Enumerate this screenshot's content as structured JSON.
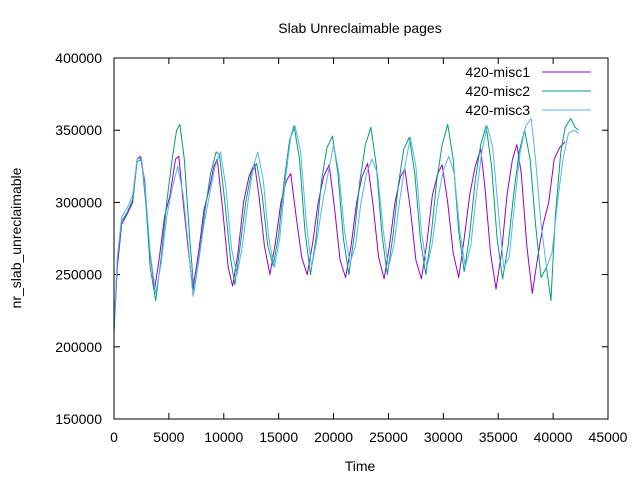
{
  "chart_data": {
    "type": "line",
    "title": "Slab Unreclaimable pages",
    "xlabel": "Time",
    "ylabel": "nr_slab_unreclaimable",
    "xlim": [
      0,
      45000
    ],
    "ylim": [
      150000,
      400000
    ],
    "xticks": [
      0,
      5000,
      10000,
      15000,
      20000,
      25000,
      30000,
      35000,
      40000,
      45000
    ],
    "yticks": [
      150000,
      200000,
      250000,
      300000,
      350000,
      400000
    ],
    "xtick_labels": [
      "0",
      "5000",
      "10000",
      "15000",
      "20000",
      "25000",
      "30000",
      "35000",
      "40000",
      "45000"
    ],
    "ytick_labels": [
      "150000",
      "200000",
      "250000",
      "300000",
      "350000",
      "400000"
    ],
    "legend_position": "top-right",
    "grid": false,
    "series": [
      {
        "name": "420-misc1",
        "color": "#9400d3",
        "points": [
          [
            0,
            210000
          ],
          [
            300,
            255000
          ],
          [
            700,
            285000
          ],
          [
            1200,
            292000
          ],
          [
            1700,
            300000
          ],
          [
            2100,
            330000
          ],
          [
            2400,
            332000
          ],
          [
            2800,
            315000
          ],
          [
            3200,
            270000
          ],
          [
            3700,
            240000
          ],
          [
            4100,
            260000
          ],
          [
            4600,
            290000
          ],
          [
            5100,
            305000
          ],
          [
            5600,
            330000
          ],
          [
            5900,
            332000
          ],
          [
            6300,
            300000
          ],
          [
            6800,
            265000
          ],
          [
            7200,
            240000
          ],
          [
            7700,
            265000
          ],
          [
            8200,
            295000
          ],
          [
            8700,
            310000
          ],
          [
            9100,
            325000
          ],
          [
            9400,
            330000
          ],
          [
            9900,
            295000
          ],
          [
            10400,
            255000
          ],
          [
            10800,
            242000
          ],
          [
            11300,
            265000
          ],
          [
            11800,
            300000
          ],
          [
            12300,
            318000
          ],
          [
            12800,
            327000
          ],
          [
            13200,
            305000
          ],
          [
            13700,
            270000
          ],
          [
            14200,
            250000
          ],
          [
            14700,
            272000
          ],
          [
            15200,
            300000
          ],
          [
            15700,
            315000
          ],
          [
            16100,
            320000
          ],
          [
            16600,
            290000
          ],
          [
            17100,
            262000
          ],
          [
            17600,
            250000
          ],
          [
            18100,
            272000
          ],
          [
            18600,
            300000
          ],
          [
            19100,
            318000
          ],
          [
            19600,
            326000
          ],
          [
            20100,
            295000
          ],
          [
            20600,
            260000
          ],
          [
            21100,
            248000
          ],
          [
            21600,
            270000
          ],
          [
            22100,
            300000
          ],
          [
            22600,
            318000
          ],
          [
            23100,
            327000
          ],
          [
            23600,
            298000
          ],
          [
            24100,
            262000
          ],
          [
            24600,
            247000
          ],
          [
            25100,
            270000
          ],
          [
            25600,
            300000
          ],
          [
            26100,
            318000
          ],
          [
            26500,
            323000
          ],
          [
            27000,
            295000
          ],
          [
            27500,
            260000
          ],
          [
            28000,
            247000
          ],
          [
            28500,
            272000
          ],
          [
            29000,
            305000
          ],
          [
            29500,
            320000
          ],
          [
            29900,
            326000
          ],
          [
            30400,
            300000
          ],
          [
            30900,
            265000
          ],
          [
            31400,
            248000
          ],
          [
            31900,
            275000
          ],
          [
            32400,
            305000
          ],
          [
            32900,
            325000
          ],
          [
            33400,
            337000
          ],
          [
            33800,
            310000
          ],
          [
            34300,
            265000
          ],
          [
            34800,
            240000
          ],
          [
            35300,
            265000
          ],
          [
            35800,
            305000
          ],
          [
            36300,
            330000
          ],
          [
            36700,
            340000
          ],
          [
            37100,
            320000
          ],
          [
            37600,
            270000
          ],
          [
            38100,
            237000
          ],
          [
            38600,
            262000
          ],
          [
            39100,
            285000
          ],
          [
            39600,
            300000
          ],
          [
            40100,
            330000
          ],
          [
            40600,
            338000
          ],
          [
            41100,
            342000
          ]
        ]
      },
      {
        "name": "420-misc2",
        "color": "#009e73",
        "points": [
          [
            0,
            212000
          ],
          [
            300,
            260000
          ],
          [
            700,
            287000
          ],
          [
            1200,
            293000
          ],
          [
            1700,
            302000
          ],
          [
            2100,
            328000
          ],
          [
            2500,
            330000
          ],
          [
            2900,
            300000
          ],
          [
            3300,
            255000
          ],
          [
            3800,
            232000
          ],
          [
            4300,
            262000
          ],
          [
            4800,
            300000
          ],
          [
            5300,
            330000
          ],
          [
            5700,
            350000
          ],
          [
            6000,
            354000
          ],
          [
            6400,
            330000
          ],
          [
            6900,
            275000
          ],
          [
            7300,
            238000
          ],
          [
            7800,
            265000
          ],
          [
            8300,
            295000
          ],
          [
            8800,
            320000
          ],
          [
            9300,
            335000
          ],
          [
            9600,
            333000
          ],
          [
            10100,
            300000
          ],
          [
            10600,
            262000
          ],
          [
            11000,
            243000
          ],
          [
            11500,
            270000
          ],
          [
            12000,
            300000
          ],
          [
            12500,
            320000
          ],
          [
            13000,
            327000
          ],
          [
            13500,
            305000
          ],
          [
            14000,
            270000
          ],
          [
            14500,
            256000
          ],
          [
            15000,
            278000
          ],
          [
            15500,
            315000
          ],
          [
            16000,
            343000
          ],
          [
            16400,
            353000
          ],
          [
            16900,
            330000
          ],
          [
            17400,
            280000
          ],
          [
            17900,
            250000
          ],
          [
            18400,
            275000
          ],
          [
            18900,
            315000
          ],
          [
            19400,
            338000
          ],
          [
            19900,
            346000
          ],
          [
            20400,
            320000
          ],
          [
            20900,
            275000
          ],
          [
            21400,
            250000
          ],
          [
            21900,
            278000
          ],
          [
            22400,
            315000
          ],
          [
            22900,
            340000
          ],
          [
            23400,
            352000
          ],
          [
            23900,
            325000
          ],
          [
            24400,
            278000
          ],
          [
            24900,
            250000
          ],
          [
            25400,
            276000
          ],
          [
            25900,
            312000
          ],
          [
            26400,
            337000
          ],
          [
            26900,
            345000
          ],
          [
            27400,
            320000
          ],
          [
            27900,
            275000
          ],
          [
            28400,
            250000
          ],
          [
            28900,
            278000
          ],
          [
            29400,
            315000
          ],
          [
            29900,
            340000
          ],
          [
            30400,
            354000
          ],
          [
            30900,
            330000
          ],
          [
            31400,
            280000
          ],
          [
            31900,
            252000
          ],
          [
            32400,
            278000
          ],
          [
            32900,
            315000
          ],
          [
            33400,
            340000
          ],
          [
            33900,
            353000
          ],
          [
            34400,
            325000
          ],
          [
            34900,
            275000
          ],
          [
            35400,
            247000
          ],
          [
            35900,
            270000
          ],
          [
            36400,
            305000
          ],
          [
            36900,
            335000
          ],
          [
            37400,
            350000
          ],
          [
            37900,
            330000
          ],
          [
            38400,
            285000
          ],
          [
            38900,
            248000
          ],
          [
            39400,
            255000
          ],
          [
            39800,
            232000
          ],
          [
            40200,
            290000
          ],
          [
            40700,
            335000
          ],
          [
            41100,
            352000
          ],
          [
            41600,
            358000
          ],
          [
            42000,
            352000
          ],
          [
            42300,
            350000
          ]
        ]
      },
      {
        "name": "420-misc3",
        "color": "#56b4e9",
        "points": [
          [
            0,
            212000
          ],
          [
            300,
            262000
          ],
          [
            700,
            290000
          ],
          [
            1200,
            296000
          ],
          [
            1700,
            305000
          ],
          [
            2100,
            330000
          ],
          [
            2500,
            331000
          ],
          [
            2900,
            305000
          ],
          [
            3300,
            265000
          ],
          [
            3800,
            237000
          ],
          [
            4300,
            258000
          ],
          [
            4800,
            290000
          ],
          [
            5300,
            310000
          ],
          [
            5800,
            325000
          ],
          [
            6300,
            305000
          ],
          [
            6800,
            268000
          ],
          [
            7200,
            235000
          ],
          [
            7700,
            258000
          ],
          [
            8200,
            285000
          ],
          [
            8700,
            305000
          ],
          [
            9200,
            325000
          ],
          [
            9700,
            335000
          ],
          [
            10200,
            310000
          ],
          [
            10700,
            268000
          ],
          [
            11200,
            250000
          ],
          [
            11700,
            270000
          ],
          [
            12200,
            300000
          ],
          [
            12700,
            325000
          ],
          [
            13100,
            335000
          ],
          [
            13600,
            315000
          ],
          [
            14100,
            275000
          ],
          [
            14600,
            255000
          ],
          [
            15100,
            275000
          ],
          [
            15600,
            315000
          ],
          [
            16100,
            345000
          ],
          [
            16500,
            353000
          ],
          [
            17000,
            335000
          ],
          [
            17500,
            288000
          ],
          [
            18000,
            255000
          ],
          [
            18500,
            275000
          ],
          [
            19000,
            300000
          ],
          [
            19500,
            320000
          ],
          [
            20000,
            340000
          ],
          [
            20500,
            320000
          ],
          [
            21000,
            280000
          ],
          [
            21500,
            258000
          ],
          [
            22000,
            270000
          ],
          [
            22500,
            300000
          ],
          [
            23000,
            320000
          ],
          [
            23500,
            330000
          ],
          [
            24000,
            320000
          ],
          [
            24500,
            282000
          ],
          [
            25000,
            255000
          ],
          [
            25500,
            270000
          ],
          [
            26000,
            300000
          ],
          [
            26500,
            325000
          ],
          [
            27000,
            345000
          ],
          [
            27500,
            325000
          ],
          [
            28000,
            280000
          ],
          [
            28500,
            255000
          ],
          [
            29000,
            272000
          ],
          [
            29500,
            302000
          ],
          [
            30000,
            322000
          ],
          [
            30500,
            332000
          ],
          [
            31000,
            320000
          ],
          [
            31500,
            280000
          ],
          [
            32000,
            255000
          ],
          [
            32500,
            270000
          ],
          [
            33000,
            305000
          ],
          [
            33500,
            335000
          ],
          [
            34000,
            353000
          ],
          [
            34500,
            338000
          ],
          [
            35000,
            295000
          ],
          [
            35500,
            255000
          ],
          [
            36000,
            262000
          ],
          [
            36500,
            300000
          ],
          [
            37000,
            335000
          ],
          [
            37500,
            353000
          ],
          [
            38000,
            358000
          ],
          [
            38400,
            330000
          ],
          [
            38900,
            285000
          ],
          [
            39400,
            255000
          ],
          [
            39900,
            265000
          ],
          [
            40400,
            300000
          ],
          [
            40900,
            330000
          ],
          [
            41400,
            348000
          ],
          [
            41900,
            350000
          ],
          [
            42300,
            348000
          ]
        ]
      }
    ]
  }
}
